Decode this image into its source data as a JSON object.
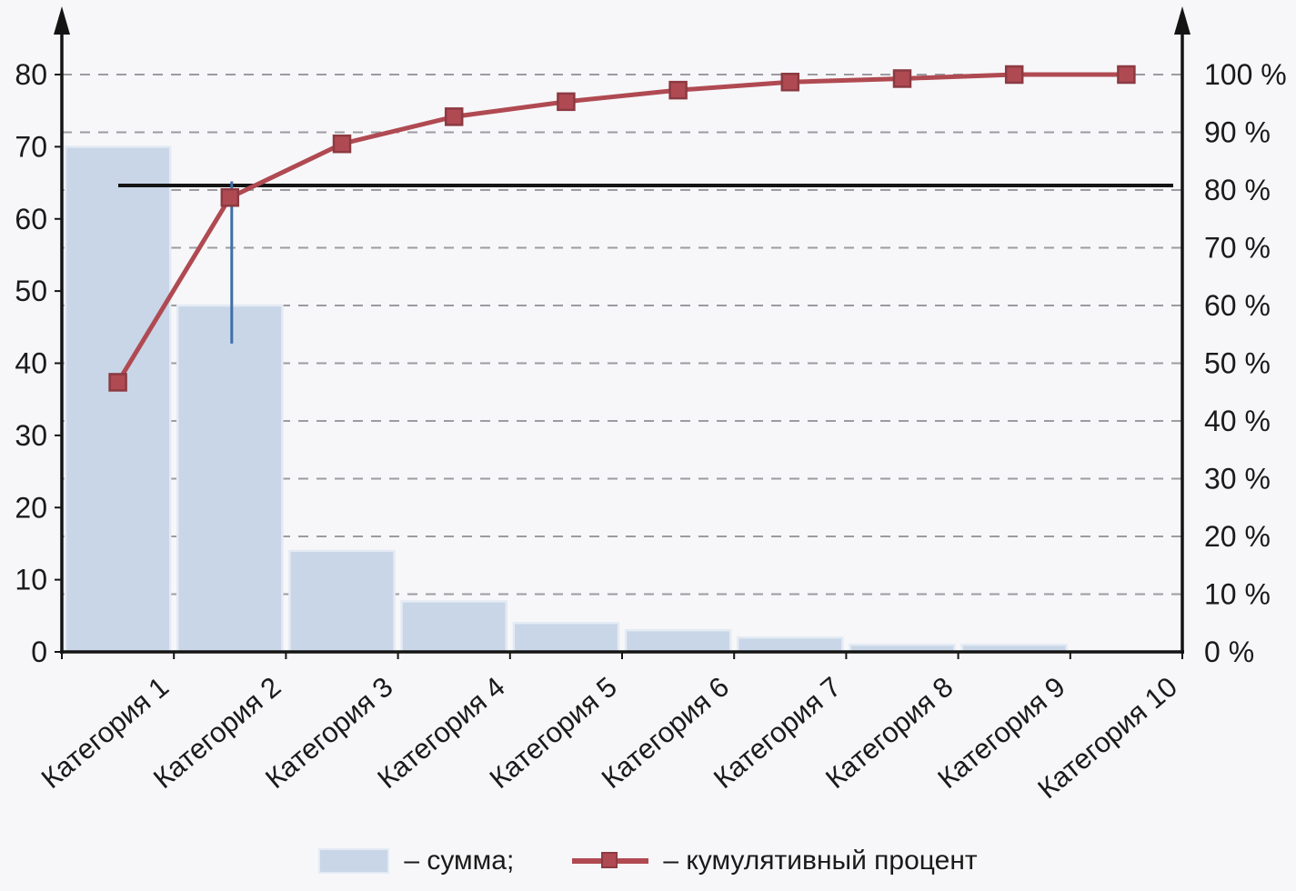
{
  "chart_data": {
    "type": "bar",
    "subtype": "pareto",
    "title": "",
    "categories": [
      "Категория 1",
      "Категория 2",
      "Категория 3",
      "Категория 4",
      "Категория 5",
      "Категория 6",
      "Категория 7",
      "Категория 8",
      "Категория 9",
      "Категория 10"
    ],
    "series": [
      {
        "name": "сумма",
        "type": "bar",
        "axis": "left",
        "values": [
          70,
          48,
          14,
          7,
          4,
          3,
          2,
          1,
          1,
          0
        ]
      },
      {
        "name": "кумулятивный процент",
        "type": "line",
        "axis": "right",
        "values": [
          46.7,
          78.7,
          88,
          92.7,
          95.3,
          97.3,
          98.7,
          99.3,
          100,
          100
        ]
      }
    ],
    "left_axis": {
      "ticks": [
        0,
        10,
        20,
        30,
        40,
        50,
        60,
        70,
        80
      ],
      "max": 80
    },
    "right_axis": {
      "ticks": [
        "0 %",
        "10 %",
        "20 %",
        "30 %",
        "40 %",
        "50 %",
        "60 %",
        "70 %",
        "80 %",
        "90 %",
        "100 %"
      ],
      "max": 100
    },
    "threshold_pct": 80,
    "drop_line": {
      "category_index": 1,
      "from_pct": 81.5,
      "to_pct": 53.4
    },
    "grid": "dashed horizontal lines every 10%",
    "legend_position": "bottom",
    "colors": {
      "bar": "#c8d6e7",
      "bar_edge": "#e4ebf4",
      "line": "#b04a52",
      "marker_edge": "#8c3a42",
      "threshold": "#141414",
      "drop_line": "#3f6fa8",
      "grid": "#9b9ba1",
      "axis": "#141414",
      "background": "#f7f7f9",
      "text": "#1a1a1a"
    }
  },
  "legend": {
    "sum_label": "– сумма;",
    "cum_label": "– кумулятивный процент"
  }
}
